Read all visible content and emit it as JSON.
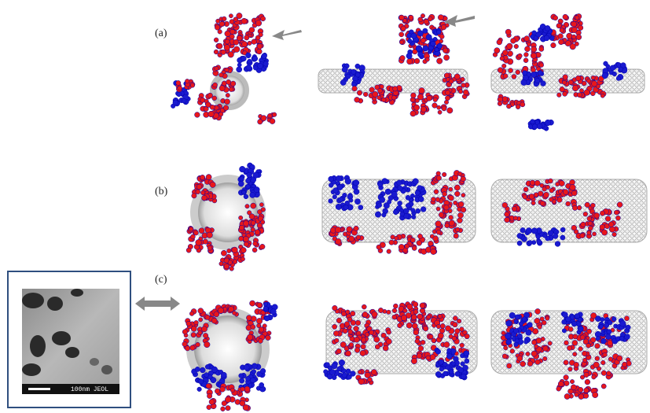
{
  "panels": [
    {
      "label": "(a)"
    },
    {
      "label": "(b)"
    },
    {
      "label": "(c)"
    }
  ],
  "inset": {
    "scale_text": "100nm JEOL"
  }
}
